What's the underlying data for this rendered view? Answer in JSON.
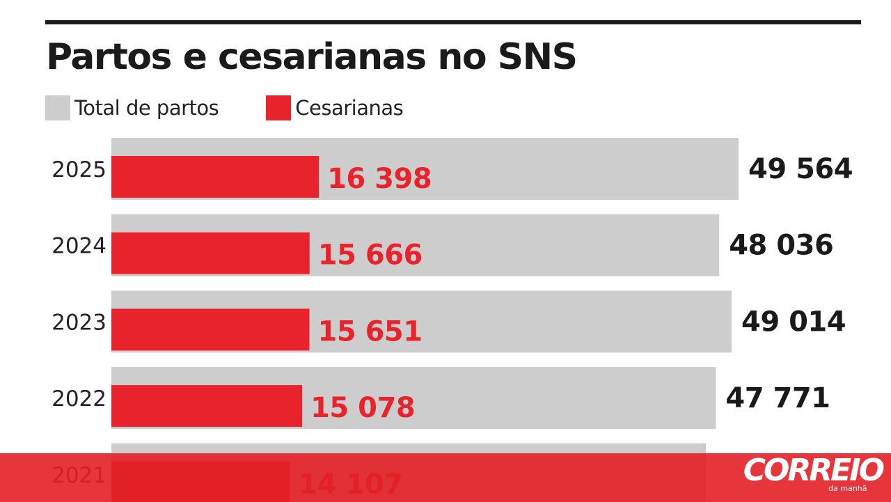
{
  "title": "Partos e cesarianas no SNS",
  "legend": [
    {
      "label": "Total de partos",
      "color": "#cdcdcd"
    },
    {
      "label": "Cesarianas",
      "color": "#e8232b"
    }
  ],
  "chart_data": {
    "type": "bar",
    "orientation": "horizontal",
    "layout": "overlapping",
    "title": "Partos e cesarianas no SNS",
    "categories": [
      "2025",
      "2024",
      "2023",
      "2022",
      "2021"
    ],
    "series": [
      {
        "name": "Total de partos",
        "color": "#cdcdcd",
        "values": [
          49564,
          48036,
          49014,
          47771,
          null
        ],
        "labels": [
          "49 564",
          "48 036",
          "49 014",
          "47 771",
          ""
        ]
      },
      {
        "name": "Cesarianas",
        "color": "#e8232b",
        "values": [
          16398,
          15666,
          15651,
          15078,
          14107
        ],
        "labels": [
          "16 398",
          "15 666",
          "15 651",
          "15 078",
          "14 107"
        ]
      }
    ],
    "xlim": [
      0,
      49564
    ],
    "grid": false,
    "legend_position": "top-left"
  },
  "footer": {
    "brand_name": "CORREIO",
    "brand_sub": "da manhã"
  }
}
